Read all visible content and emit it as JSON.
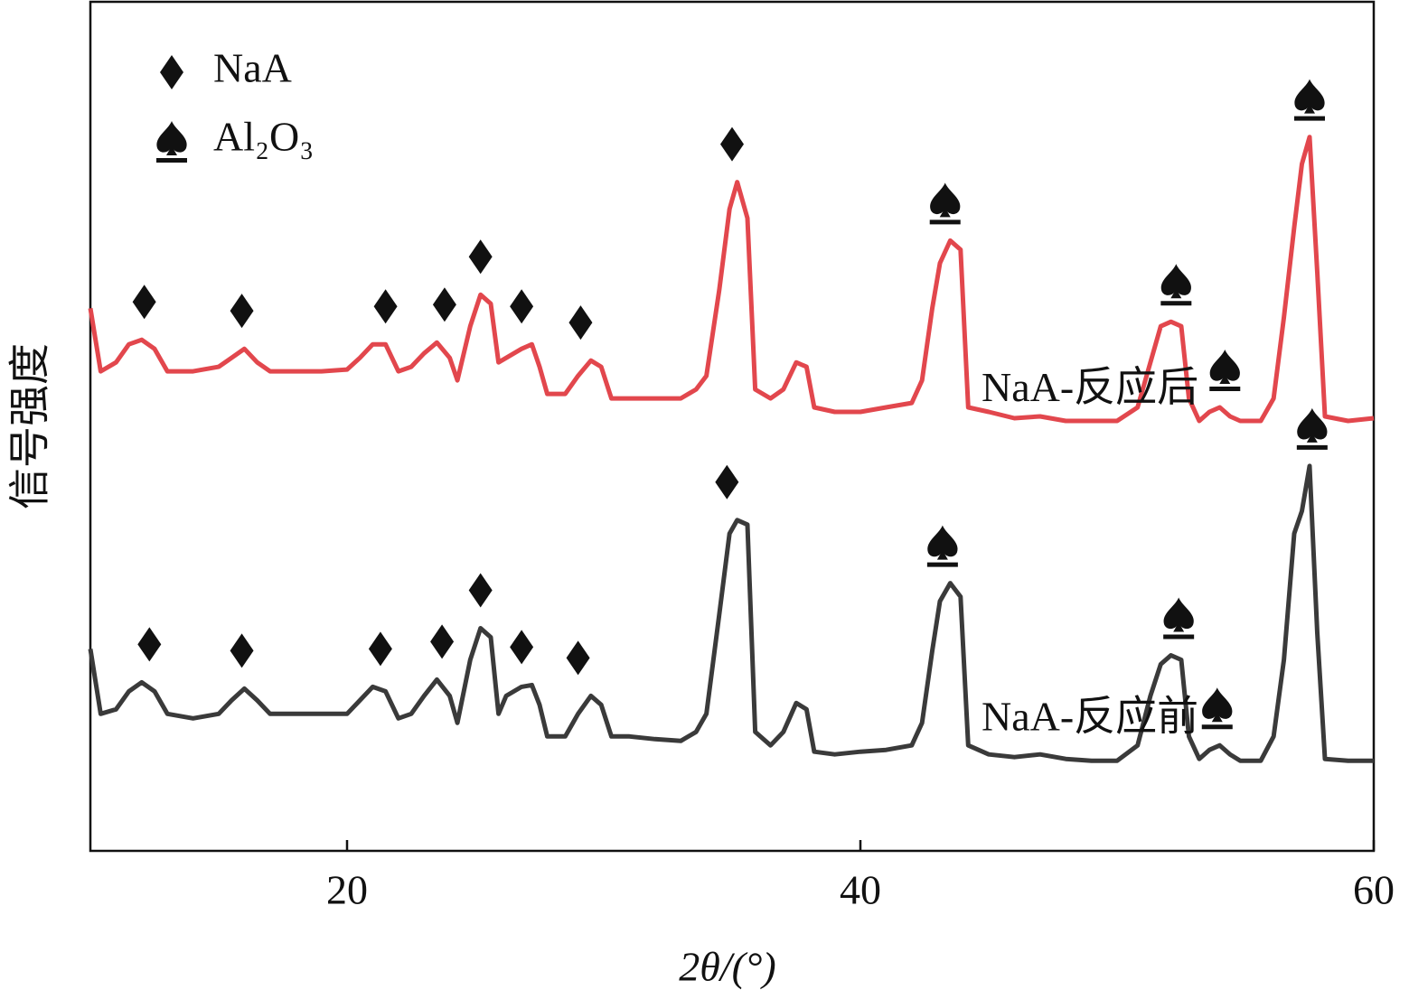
{
  "chart_data": {
    "type": "line",
    "xlabel": "2θ/(°)",
    "ylabel": "信号强度",
    "xlim": [
      10,
      60
    ],
    "xticks": [
      20,
      40,
      60
    ],
    "ylim": [
      0,
      942
    ],
    "x": [
      10,
      10.4,
      11,
      11.5,
      12,
      12.5,
      13,
      14,
      15,
      15.5,
      16,
      16.5,
      17,
      18,
      19,
      20,
      20.5,
      21,
      21.5,
      22,
      22.5,
      23,
      23.5,
      24,
      24.3,
      24.8,
      25.2,
      25.6,
      25.9,
      26.2,
      26.8,
      27.2,
      27.5,
      27.8,
      28.5,
      29,
      29.5,
      29.9,
      30.3,
      31,
      32,
      33,
      33.6,
      34,
      34.5,
      34.9,
      35.2,
      35.6,
      35.9,
      36.5,
      37,
      37.5,
      37.9,
      38.2,
      39,
      40,
      41,
      42,
      42.4,
      42.8,
      43.1,
      43.5,
      43.9,
      44.2,
      45,
      46,
      47,
      48,
      49,
      50,
      50.8,
      51.3,
      51.7,
      52.1,
      52.5,
      52.8,
      53.2,
      53.6,
      54,
      54.4,
      54.8,
      55.6,
      56.1,
      56.5,
      56.9,
      57.2,
      57.5,
      57.8,
      58.1,
      59,
      60
    ],
    "series": [
      {
        "name": "NaA-反应后",
        "color": "#e2474d",
        "values": [
          602,
          532,
          542,
          562,
          567,
          557,
          532,
          532,
          537,
          547,
          557,
          542,
          532,
          532,
          532,
          534,
          547,
          562,
          562,
          532,
          537,
          552,
          564,
          547,
          522,
          582,
          617,
          607,
          542,
          547,
          557,
          562,
          537,
          507,
          507,
          527,
          544,
          537,
          502,
          502,
          502,
          502,
          512,
          527,
          622,
          712,
          742,
          702,
          512,
          502,
          512,
          542,
          537,
          492,
          487,
          487,
          492,
          497,
          522,
          602,
          652,
          677,
          667,
          492,
          487,
          480,
          482,
          477,
          477,
          477,
          492,
          542,
          582,
          587,
          582,
          502,
          477,
          487,
          492,
          482,
          477,
          477,
          502,
          592,
          692,
          762,
          792,
          642,
          482,
          477,
          480
        ],
        "peaks": [
          {
            "x": 12.1,
            "symbol": "diamond"
          },
          {
            "x": 15.9,
            "symbol": "diamond"
          },
          {
            "x": 21.5,
            "symbol": "diamond"
          },
          {
            "x": 23.8,
            "symbol": "diamond"
          },
          {
            "x": 25.2,
            "symbol": "diamond"
          },
          {
            "x": 26.8,
            "symbol": "diamond"
          },
          {
            "x": 29.1,
            "symbol": "diamond"
          },
          {
            "x": 35.0,
            "symbol": "diamond"
          },
          {
            "x": 43.3,
            "symbol": "spade"
          },
          {
            "x": 52.3,
            "symbol": "spade"
          },
          {
            "x": 54.2,
            "symbol": "spade"
          },
          {
            "x": 57.5,
            "symbol": "spade"
          }
        ]
      },
      {
        "name": "NaA-反应前",
        "color": "#3a3a3a",
        "values": [
          224,
          152,
          157,
          177,
          187,
          177,
          152,
          147,
          152,
          167,
          180,
          167,
          152,
          152,
          152,
          152,
          167,
          182,
          177,
          147,
          152,
          172,
          190,
          172,
          142,
          212,
          247,
          237,
          152,
          172,
          182,
          184,
          162,
          127,
          127,
          152,
          172,
          162,
          127,
          127,
          124,
          122,
          132,
          152,
          262,
          352,
          367,
          362,
          132,
          117,
          132,
          164,
          157,
          110,
          107,
          110,
          112,
          117,
          142,
          222,
          277,
          297,
          282,
          117,
          107,
          104,
          107,
          102,
          100,
          100,
          117,
          172,
          207,
          217,
          212,
          127,
          102,
          112,
          117,
          107,
          100,
          100,
          127,
          212,
          352,
          377,
          427,
          242,
          102,
          100,
          100
        ],
        "peaks": [
          {
            "x": 12.3,
            "symbol": "diamond"
          },
          {
            "x": 15.9,
            "symbol": "diamond"
          },
          {
            "x": 21.3,
            "symbol": "diamond"
          },
          {
            "x": 23.7,
            "symbol": "diamond"
          },
          {
            "x": 25.2,
            "symbol": "diamond"
          },
          {
            "x": 26.8,
            "symbol": "diamond"
          },
          {
            "x": 29.0,
            "symbol": "diamond"
          },
          {
            "x": 34.8,
            "symbol": "diamond"
          },
          {
            "x": 43.2,
            "symbol": "spade"
          },
          {
            "x": 52.4,
            "symbol": "spade"
          },
          {
            "x": 53.9,
            "symbol": "spade"
          },
          {
            "x": 57.6,
            "symbol": "spade"
          }
        ]
      }
    ],
    "markers": [
      {
        "symbol": "diamond",
        "label": "NaA"
      },
      {
        "symbol": "spade",
        "label": "Al₂O₃"
      }
    ]
  }
}
